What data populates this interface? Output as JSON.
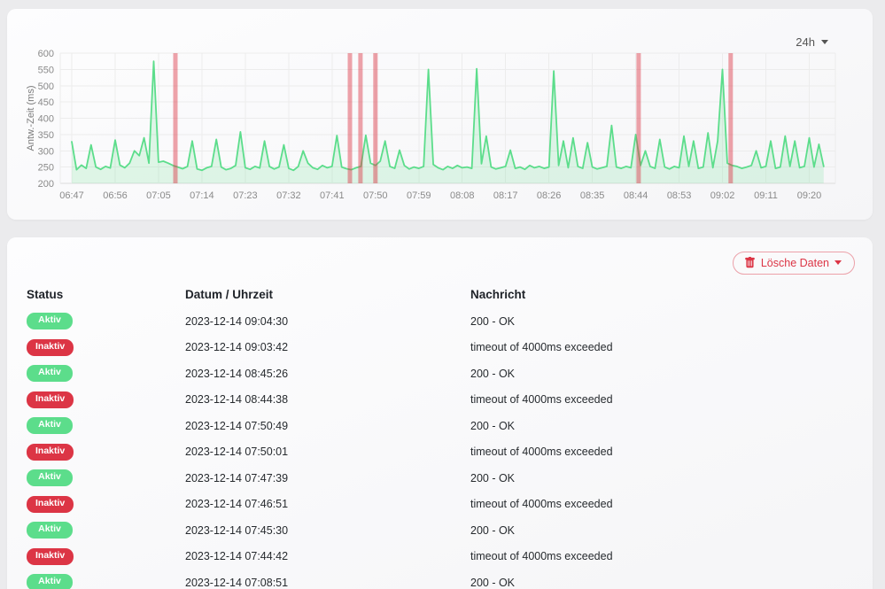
{
  "theme": {
    "accent_green": "#5cdd8b",
    "accent_red": "#dc3545",
    "grid_color": "#ececec",
    "axis_color": "#dcdcdc"
  },
  "chart": {
    "period_label": "24h"
  },
  "chart_data": {
    "type": "line",
    "title": "",
    "xlabel": "",
    "ylabel": "Antw.-Zeit (ms)",
    "ylim": [
      200,
      600
    ],
    "y_ticks": [
      200,
      250,
      300,
      350,
      400,
      450,
      500,
      550,
      600
    ],
    "x_ticks": [
      "06:47",
      "06:56",
      "07:05",
      "07:14",
      "07:23",
      "07:32",
      "07:41",
      "07:50",
      "07:59",
      "08:08",
      "08:17",
      "08:26",
      "08:35",
      "08:44",
      "08:53",
      "09:02",
      "09:11",
      "09:20"
    ],
    "x_tick_interval_minutes": 9,
    "grid": true,
    "legend_position": "none",
    "line_color": "#5cdd8b",
    "fill_color": "rgba(92,221,139,0.18)",
    "down_bar_color": "rgba(220,53,69,0.45)",
    "series": [
      {
        "name": "Antw.-Zeit (ms)",
        "start_time": "06:47",
        "minutes_per_point": 1,
        "values": [
          328,
          242,
          256,
          246,
          318,
          250,
          243,
          252,
          247,
          333,
          256,
          248,
          262,
          300,
          285,
          340,
          262,
          575,
          265,
          268,
          262,
          255,
          250,
          245,
          252,
          330,
          244,
          240,
          248,
          252,
          335,
          250,
          242,
          246,
          255,
          358,
          248,
          243,
          252,
          247,
          330,
          252,
          244,
          250,
          318,
          246,
          240,
          252,
          300,
          262,
          248,
          243,
          255,
          248,
          252,
          347,
          250,
          245,
          242,
          248,
          252,
          348,
          262,
          255,
          268,
          330,
          252,
          246,
          302,
          255,
          244,
          250,
          246,
          252,
          550,
          258,
          248,
          242,
          252,
          246,
          255,
          248,
          250,
          246,
          552,
          260,
          345,
          250,
          244,
          248,
          252,
          302,
          246,
          250,
          243,
          255,
          248,
          252,
          246,
          250,
          545,
          255,
          330,
          248,
          340,
          252,
          246,
          325,
          250,
          244,
          248,
          252,
          378,
          250,
          246,
          252,
          248,
          350,
          255,
          300,
          252,
          246,
          335,
          250,
          244,
          252,
          248,
          345,
          252,
          330,
          246,
          250,
          355,
          248,
          330,
          550,
          262,
          255,
          252,
          246,
          250,
          255,
          300,
          248,
          252,
          330,
          246,
          250,
          345,
          252,
          330,
          248,
          252,
          340,
          250,
          320,
          252
        ]
      }
    ],
    "down_events_minutes_after_start": [
      21.5,
      57.7,
      59.9,
      63.0,
      117.6,
      136.7
    ]
  },
  "events": {
    "delete_button_label": "Lösche Daten",
    "columns": [
      "Status",
      "Datum / Uhrzeit",
      "Nachricht"
    ],
    "status_labels": {
      "up": "Aktiv",
      "down": "Inaktiv"
    },
    "rows": [
      {
        "status": "Aktiv",
        "up": true,
        "datetime": "2023-12-14 09:04:30",
        "message": "200 - OK"
      },
      {
        "status": "Inaktiv",
        "up": false,
        "datetime": "2023-12-14 09:03:42",
        "message": "timeout of 4000ms exceeded"
      },
      {
        "status": "Aktiv",
        "up": true,
        "datetime": "2023-12-14 08:45:26",
        "message": "200 - OK"
      },
      {
        "status": "Inaktiv",
        "up": false,
        "datetime": "2023-12-14 08:44:38",
        "message": "timeout of 4000ms exceeded"
      },
      {
        "status": "Aktiv",
        "up": true,
        "datetime": "2023-12-14 07:50:49",
        "message": "200 - OK"
      },
      {
        "status": "Inaktiv",
        "up": false,
        "datetime": "2023-12-14 07:50:01",
        "message": "timeout of 4000ms exceeded"
      },
      {
        "status": "Aktiv",
        "up": true,
        "datetime": "2023-12-14 07:47:39",
        "message": "200 - OK"
      },
      {
        "status": "Inaktiv",
        "up": false,
        "datetime": "2023-12-14 07:46:51",
        "message": "timeout of 4000ms exceeded"
      },
      {
        "status": "Aktiv",
        "up": true,
        "datetime": "2023-12-14 07:45:30",
        "message": "200 - OK"
      },
      {
        "status": "Inaktiv",
        "up": false,
        "datetime": "2023-12-14 07:44:42",
        "message": "timeout of 4000ms exceeded"
      },
      {
        "status": "Aktiv",
        "up": true,
        "datetime": "2023-12-14 07:08:51",
        "message": "200 - OK"
      }
    ]
  }
}
